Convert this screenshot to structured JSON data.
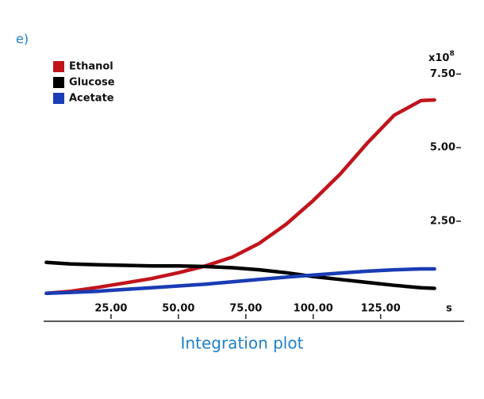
{
  "panel_label": "e)",
  "caption": "Integration plot",
  "chart_data": {
    "type": "line",
    "y_multiplier": "x10",
    "y_multiplier_exponent": "8",
    "x_unit": "s",
    "x": [
      1,
      10,
      20,
      30,
      40,
      50,
      60,
      70,
      80,
      90,
      100,
      110,
      120,
      130,
      140,
      145
    ],
    "series": [
      {
        "name": "Ethanol",
        "color": "#c0141c",
        "values": [
          0.05,
          0.12,
          0.25,
          0.4,
          0.55,
          0.75,
          0.98,
          1.28,
          1.75,
          2.4,
          3.2,
          4.1,
          5.15,
          6.1,
          6.6,
          6.62
        ]
      },
      {
        "name": "Glucose",
        "color": "#000000",
        "values": [
          1.1,
          1.05,
          1.02,
          1.0,
          0.98,
          0.98,
          0.96,
          0.92,
          0.85,
          0.75,
          0.62,
          0.52,
          0.42,
          0.32,
          0.24,
          0.22
        ]
      },
      {
        "name": "Acetate",
        "color": "#1a3cb4",
        "values": [
          0.05,
          0.08,
          0.12,
          0.18,
          0.24,
          0.3,
          0.36,
          0.44,
          0.52,
          0.6,
          0.67,
          0.74,
          0.8,
          0.85,
          0.88,
          0.88
        ]
      }
    ],
    "xlim": [
      0,
      156
    ],
    "ylim": [
      -0.9,
      8.4
    ],
    "xticks": [
      {
        "value": 25,
        "label": "25.00"
      },
      {
        "value": 50,
        "label": "50.00"
      },
      {
        "value": 75,
        "label": "75.00"
      },
      {
        "value": 100,
        "label": "100.00"
      },
      {
        "value": 125,
        "label": "125.00"
      }
    ],
    "yticks": [
      {
        "value": 2.5,
        "label": "2.50"
      },
      {
        "value": 5,
        "label": "5.00"
      },
      {
        "value": 7.5,
        "label": "7.50"
      }
    ],
    "legend": "upper left"
  }
}
